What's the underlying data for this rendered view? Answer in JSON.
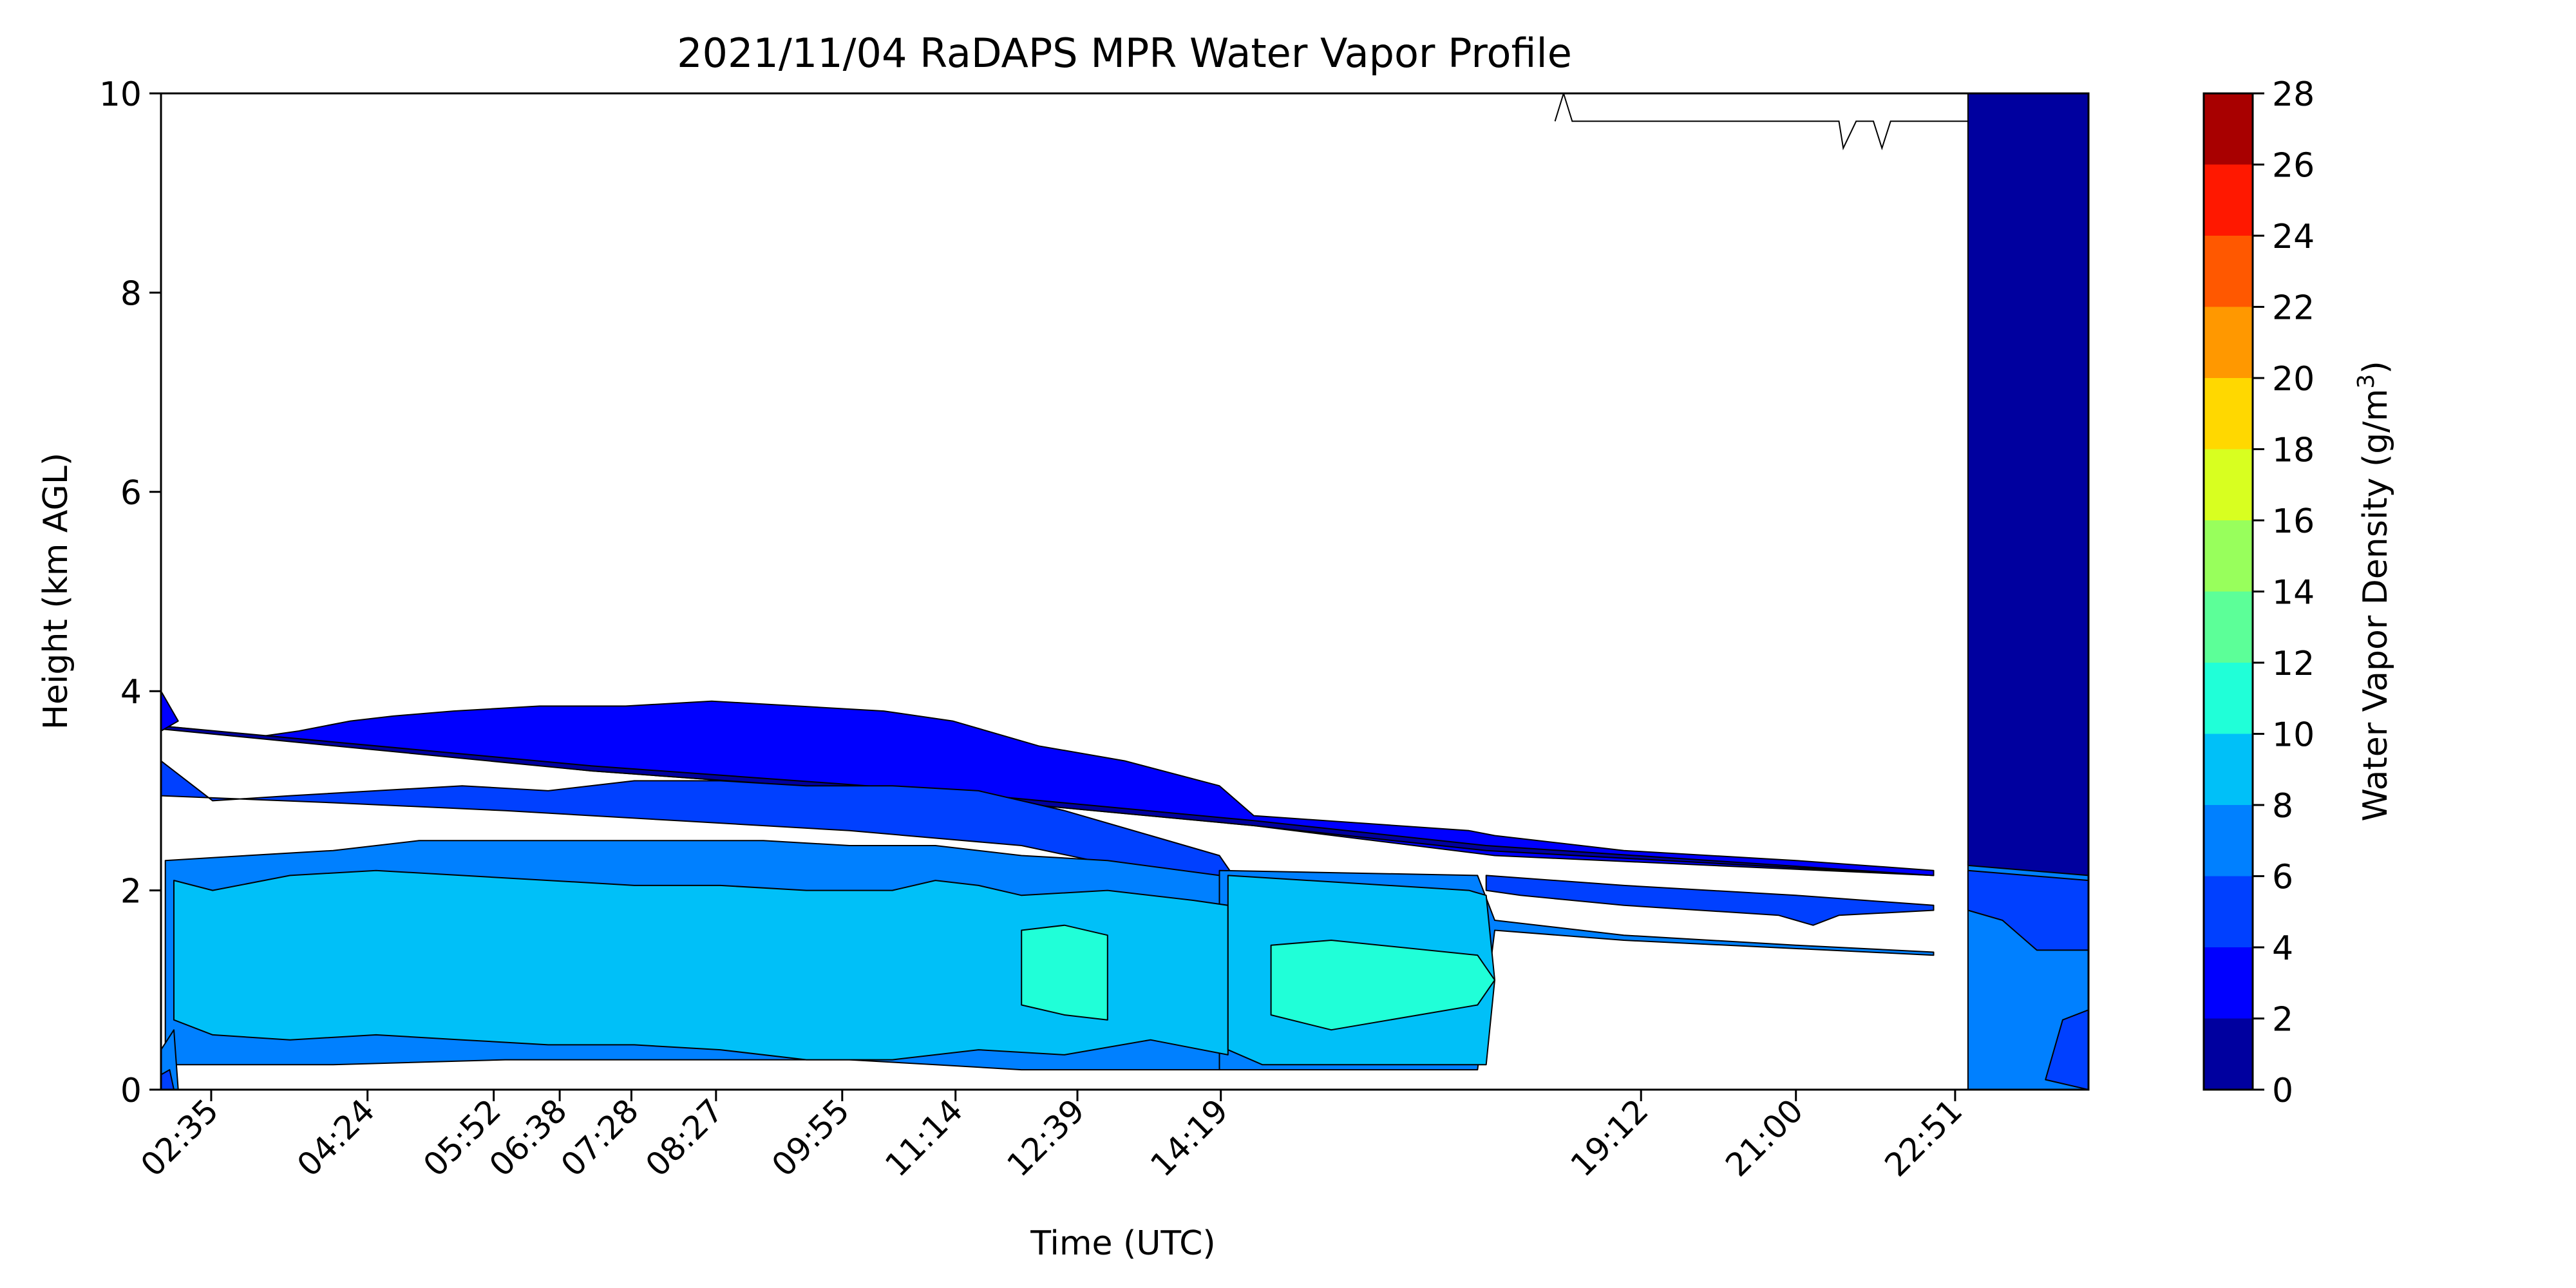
{
  "chart_data": {
    "type": "heatmap",
    "title": "2021/11/04 RaDAPS MPR Water Vapor Profile",
    "xlabel": "Time (UTC)",
    "ylabel": "Height (km AGL)",
    "ylim": [
      0,
      10
    ],
    "xlim": [
      2.0,
      24.4
    ],
    "x_tick_labels": [
      "02:35",
      "04:24",
      "05:52",
      "06:38",
      "07:28",
      "08:27",
      "09:55",
      "11:14",
      "12:39",
      "14:19",
      "19:12",
      "21:00",
      "22:51"
    ],
    "y_ticks": [
      0,
      2,
      4,
      6,
      8,
      10
    ],
    "colorbar": {
      "label": "Water Vapor Density (g/m",
      "label_superscript": "3",
      "label_close": ")",
      "ticks": [
        0,
        2,
        4,
        6,
        8,
        10,
        12,
        14,
        16,
        18,
        20,
        22,
        24,
        26,
        28
      ],
      "levels": [
        {
          "from": 0,
          "to": 2,
          "color": "#00009f"
        },
        {
          "from": 2,
          "to": 4,
          "color": "#0000ff"
        },
        {
          "from": 4,
          "to": 6,
          "color": "#0040ff"
        },
        {
          "from": 6,
          "to": 8,
          "color": "#0080ff"
        },
        {
          "from": 8,
          "to": 10,
          "color": "#00c0f8"
        },
        {
          "from": 10,
          "to": 12,
          "color": "#20ffd8"
        },
        {
          "from": 12,
          "to": 14,
          "color": "#5cff98"
        },
        {
          "from": 14,
          "to": 16,
          "color": "#98ff5c"
        },
        {
          "from": 16,
          "to": 18,
          "color": "#d8ff20"
        },
        {
          "from": 18,
          "to": 20,
          "color": "#ffd800"
        },
        {
          "from": 20,
          "to": 22,
          "color": "#ff9800"
        },
        {
          "from": 22,
          "to": 24,
          "color": "#ff5800"
        },
        {
          "from": 24,
          "to": 26,
          "color": "#ff1800"
        },
        {
          "from": 26,
          "to": 28,
          "color": "#a80000"
        }
      ]
    },
    "regions": [
      {
        "level": "2-4",
        "color": "#0000ff",
        "points": [
          [
            2.0,
            3.65
          ],
          [
            2.6,
            3.6
          ],
          [
            3.2,
            3.55
          ],
          [
            3.6,
            3.6
          ],
          [
            4.2,
            3.7
          ],
          [
            4.7,
            3.75
          ],
          [
            5.4,
            3.8
          ],
          [
            6.4,
            3.85
          ],
          [
            7.4,
            3.85
          ],
          [
            8.4,
            3.9
          ],
          [
            9.4,
            3.85
          ],
          [
            10.4,
            3.8
          ],
          [
            11.2,
            3.7
          ],
          [
            12.2,
            3.45
          ],
          [
            13.2,
            3.3
          ],
          [
            14.3,
            3.05
          ],
          [
            14.7,
            2.75
          ],
          [
            17.2,
            2.6
          ],
          [
            17.5,
            2.55
          ],
          [
            19.0,
            2.4
          ],
          [
            21.0,
            2.3
          ],
          [
            22.6,
            2.2
          ],
          [
            22.6,
            2.15
          ],
          [
            17.5,
            2.35
          ],
          [
            14.7,
            2.65
          ],
          [
            11.0,
            2.95
          ],
          [
            7.0,
            3.2
          ],
          [
            2.0,
            3.65
          ]
        ]
      },
      {
        "level": "0-2",
        "color": "#00009f",
        "points": [
          [
            2.0,
            3.65
          ],
          [
            7.0,
            3.25
          ],
          [
            11.0,
            3.0
          ],
          [
            14.7,
            2.7
          ],
          [
            17.4,
            2.45
          ],
          [
            22.6,
            2.15
          ],
          [
            17.4,
            2.4
          ],
          [
            14.7,
            2.65
          ],
          [
            11.0,
            2.95
          ],
          [
            7.0,
            3.2
          ],
          [
            2.0,
            3.62
          ]
        ]
      },
      {
        "level": "2-4",
        "color": "#0000ff",
        "points": [
          [
            2.0,
            4.0
          ],
          [
            2.2,
            3.7
          ],
          [
            2.0,
            3.6
          ]
        ]
      },
      {
        "level": "4-6",
        "color": "#0040ff",
        "points": [
          [
            2.0,
            3.3
          ],
          [
            2.6,
            2.9
          ],
          [
            3.5,
            2.95
          ],
          [
            4.5,
            3.0
          ],
          [
            5.5,
            3.05
          ],
          [
            6.5,
            3.0
          ],
          [
            7.5,
            3.1
          ],
          [
            8.5,
            3.1
          ],
          [
            9.5,
            3.05
          ],
          [
            10.5,
            3.05
          ],
          [
            11.5,
            3.0
          ],
          [
            12.5,
            2.8
          ],
          [
            13.5,
            2.55
          ],
          [
            14.3,
            2.35
          ],
          [
            14.5,
            2.1
          ],
          [
            14.2,
            2.05
          ],
          [
            12.0,
            2.45
          ],
          [
            10.0,
            2.6
          ],
          [
            8.0,
            2.7
          ],
          [
            6.0,
            2.8
          ],
          [
            4.0,
            2.88
          ],
          [
            2.0,
            2.95
          ]
        ]
      },
      {
        "level": "4-6",
        "color": "#0040ff",
        "points": [
          [
            17.4,
            2.15
          ],
          [
            19.0,
            2.05
          ],
          [
            21.0,
            1.95
          ],
          [
            22.6,
            1.85
          ],
          [
            22.6,
            1.8
          ],
          [
            21.5,
            1.75
          ],
          [
            21.2,
            1.65
          ],
          [
            20.8,
            1.75
          ],
          [
            19.0,
            1.85
          ],
          [
            17.8,
            1.95
          ],
          [
            17.4,
            2.0
          ]
        ]
      },
      {
        "level": "6-8",
        "color": "#0080ff",
        "points": [
          [
            2.05,
            2.3
          ],
          [
            3.0,
            2.35
          ],
          [
            4.0,
            2.4
          ],
          [
            5.0,
            2.5
          ],
          [
            6.0,
            2.5
          ],
          [
            7.0,
            2.5
          ],
          [
            8.0,
            2.5
          ],
          [
            9.0,
            2.5
          ],
          [
            10.0,
            2.45
          ],
          [
            11.0,
            2.45
          ],
          [
            12.0,
            2.35
          ],
          [
            13.0,
            2.3
          ],
          [
            14.3,
            2.15
          ],
          [
            14.3,
            0.2
          ],
          [
            13.0,
            0.2
          ],
          [
            12.0,
            0.2
          ],
          [
            11.0,
            0.25
          ],
          [
            10.0,
            0.3
          ],
          [
            8.0,
            0.3
          ],
          [
            6.0,
            0.3
          ],
          [
            4.0,
            0.25
          ],
          [
            2.05,
            0.25
          ]
        ]
      },
      {
        "level": "6-8",
        "color": "#0080ff",
        "points": [
          [
            14.3,
            2.2
          ],
          [
            17.3,
            2.15
          ],
          [
            17.5,
            1.7
          ],
          [
            19.0,
            1.55
          ],
          [
            21.0,
            1.45
          ],
          [
            22.6,
            1.38
          ],
          [
            22.6,
            1.35
          ],
          [
            19.0,
            1.5
          ],
          [
            17.5,
            1.6
          ],
          [
            17.3,
            0.2
          ],
          [
            14.3,
            0.2
          ]
        ]
      },
      {
        "level": "8-10",
        "color": "#00c0f8",
        "points": [
          [
            2.15,
            2.1
          ],
          [
            2.6,
            2.0
          ],
          [
            3.5,
            2.15
          ],
          [
            4.5,
            2.2
          ],
          [
            5.5,
            2.15
          ],
          [
            6.5,
            2.1
          ],
          [
            7.5,
            2.05
          ],
          [
            8.5,
            2.05
          ],
          [
            9.5,
            2.0
          ],
          [
            10.5,
            2.0
          ],
          [
            11.0,
            2.1
          ],
          [
            11.5,
            2.05
          ],
          [
            12.0,
            1.95
          ],
          [
            13.0,
            2.0
          ],
          [
            14.0,
            1.9
          ],
          [
            14.4,
            1.85
          ],
          [
            14.4,
            0.35
          ],
          [
            13.5,
            0.5
          ],
          [
            12.5,
            0.35
          ],
          [
            11.5,
            0.4
          ],
          [
            10.5,
            0.3
          ],
          [
            9.5,
            0.3
          ],
          [
            8.5,
            0.4
          ],
          [
            7.5,
            0.45
          ],
          [
            6.5,
            0.45
          ],
          [
            5.5,
            0.5
          ],
          [
            4.5,
            0.55
          ],
          [
            3.5,
            0.5
          ],
          [
            2.6,
            0.55
          ],
          [
            2.15,
            0.7
          ]
        ]
      },
      {
        "level": "8-10",
        "color": "#00c0f8",
        "points": [
          [
            14.4,
            2.15
          ],
          [
            17.2,
            2.0
          ],
          [
            17.4,
            1.95
          ],
          [
            17.5,
            1.1
          ],
          [
            17.4,
            0.25
          ],
          [
            14.8,
            0.25
          ],
          [
            14.4,
            0.4
          ]
        ]
      },
      {
        "level": "10-12",
        "color": "#20ffd8",
        "points": [
          [
            14.9,
            1.45
          ],
          [
            15.6,
            1.5
          ],
          [
            17.3,
            1.35
          ],
          [
            17.5,
            1.1
          ],
          [
            17.3,
            0.85
          ],
          [
            15.6,
            0.6
          ],
          [
            14.9,
            0.75
          ]
        ]
      },
      {
        "level": "10-12",
        "color": "#20ffd8",
        "points": [
          [
            12.0,
            1.6
          ],
          [
            12.5,
            1.65
          ],
          [
            13.0,
            1.55
          ],
          [
            13.0,
            0.7
          ],
          [
            12.5,
            0.75
          ],
          [
            12.0,
            0.85
          ]
        ]
      },
      {
        "level": "6-8",
        "color": "#0080ff",
        "points": [
          [
            23.0,
            2.3
          ],
          [
            24.4,
            2.2
          ],
          [
            24.4,
            0.0
          ],
          [
            23.0,
            0.0
          ]
        ]
      },
      {
        "level": "4-6",
        "color": "#0040ff",
        "points": [
          [
            23.0,
            2.2
          ],
          [
            24.4,
            2.1
          ],
          [
            24.4,
            1.4
          ],
          [
            23.8,
            1.4
          ],
          [
            23.4,
            1.7
          ],
          [
            23.0,
            1.8
          ]
        ]
      },
      {
        "level": "0-2",
        "color": "#00009f",
        "points": [
          [
            23.0,
            10.0
          ],
          [
            24.4,
            10.0
          ],
          [
            24.4,
            2.15
          ],
          [
            23.0,
            2.25
          ]
        ]
      },
      {
        "level": "4-6",
        "color": "#0040ff",
        "points": [
          [
            24.1,
            0.7
          ],
          [
            24.4,
            0.8
          ],
          [
            24.4,
            0.0
          ],
          [
            23.9,
            0.1
          ]
        ]
      },
      {
        "level": "6-8",
        "color": "#0080ff",
        "points": [
          [
            2.0,
            0.0
          ],
          [
            2.2,
            0.0
          ],
          [
            2.15,
            0.6
          ],
          [
            2.0,
            0.4
          ]
        ]
      },
      {
        "level": "4-6",
        "color": "#0040ff",
        "points": [
          [
            2.0,
            0.0
          ],
          [
            2.15,
            0.0
          ],
          [
            2.1,
            0.2
          ],
          [
            2.0,
            0.15
          ]
        ]
      }
    ],
    "contour_line": {
      "level": "0",
      "points": [
        [
          18.2,
          9.72
        ],
        [
          18.3,
          10.0
        ],
        [
          18.4,
          9.72
        ],
        [
          19.0,
          9.72
        ],
        [
          21.0,
          9.72
        ],
        [
          21.5,
          9.72
        ],
        [
          21.55,
          9.45
        ],
        [
          21.7,
          9.72
        ],
        [
          21.9,
          9.72
        ],
        [
          22.0,
          9.45
        ],
        [
          22.1,
          9.72
        ],
        [
          23.0,
          9.72
        ]
      ]
    }
  }
}
